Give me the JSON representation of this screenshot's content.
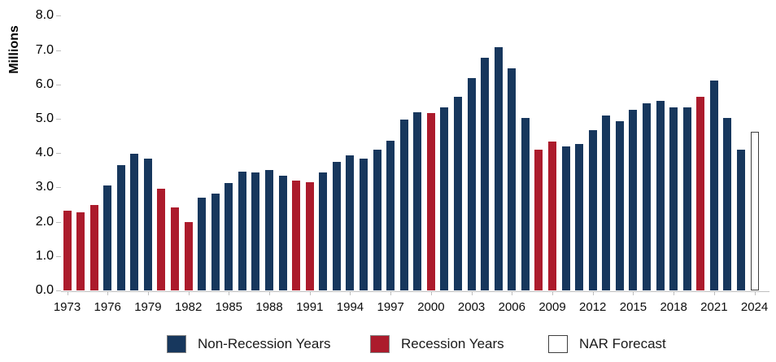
{
  "chart_data": {
    "type": "bar",
    "ylabel": "Millions",
    "ylim": [
      0.0,
      8.0
    ],
    "ytick_labels": [
      "0.0",
      "1.0",
      "2.0",
      "3.0",
      "4.0",
      "5.0",
      "6.0",
      "7.0",
      "8.0"
    ],
    "xtick_labels": [
      "1973",
      "1976",
      "1979",
      "1982",
      "1985",
      "1988",
      "1991",
      "1994",
      "1997",
      "2000",
      "2003",
      "2006",
      "2009",
      "2012",
      "2015",
      "2018",
      "2021",
      "2024"
    ],
    "grid": false,
    "legend_position": "bottom",
    "bars": [
      {
        "year": 1973,
        "value": 2.33,
        "kind": "recession"
      },
      {
        "year": 1974,
        "value": 2.28,
        "kind": "recession"
      },
      {
        "year": 1975,
        "value": 2.48,
        "kind": "recession"
      },
      {
        "year": 1976,
        "value": 3.06,
        "kind": "normal"
      },
      {
        "year": 1977,
        "value": 3.65,
        "kind": "normal"
      },
      {
        "year": 1978,
        "value": 3.99,
        "kind": "normal"
      },
      {
        "year": 1979,
        "value": 3.83,
        "kind": "normal"
      },
      {
        "year": 1980,
        "value": 2.97,
        "kind": "recession"
      },
      {
        "year": 1981,
        "value": 2.42,
        "kind": "recession"
      },
      {
        "year": 1982,
        "value": 1.99,
        "kind": "recession"
      },
      {
        "year": 1983,
        "value": 2.7,
        "kind": "normal"
      },
      {
        "year": 1984,
        "value": 2.83,
        "kind": "normal"
      },
      {
        "year": 1985,
        "value": 3.13,
        "kind": "normal"
      },
      {
        "year": 1986,
        "value": 3.47,
        "kind": "normal"
      },
      {
        "year": 1987,
        "value": 3.44,
        "kind": "normal"
      },
      {
        "year": 1988,
        "value": 3.51,
        "kind": "normal"
      },
      {
        "year": 1989,
        "value": 3.33,
        "kind": "normal"
      },
      {
        "year": 1990,
        "value": 3.19,
        "kind": "recession"
      },
      {
        "year": 1991,
        "value": 3.15,
        "kind": "recession"
      },
      {
        "year": 1992,
        "value": 3.43,
        "kind": "normal"
      },
      {
        "year": 1993,
        "value": 3.74,
        "kind": "normal"
      },
      {
        "year": 1994,
        "value": 3.93,
        "kind": "normal"
      },
      {
        "year": 1995,
        "value": 3.84,
        "kind": "normal"
      },
      {
        "year": 1996,
        "value": 4.09,
        "kind": "normal"
      },
      {
        "year": 1997,
        "value": 4.37,
        "kind": "normal"
      },
      {
        "year": 1998,
        "value": 4.97,
        "kind": "normal"
      },
      {
        "year": 1999,
        "value": 5.19,
        "kind": "normal"
      },
      {
        "year": 2000,
        "value": 5.17,
        "kind": "recession"
      },
      {
        "year": 2001,
        "value": 5.34,
        "kind": "normal"
      },
      {
        "year": 2002,
        "value": 5.63,
        "kind": "normal"
      },
      {
        "year": 2003,
        "value": 6.18,
        "kind": "normal"
      },
      {
        "year": 2004,
        "value": 6.78,
        "kind": "normal"
      },
      {
        "year": 2005,
        "value": 7.08,
        "kind": "normal"
      },
      {
        "year": 2006,
        "value": 6.48,
        "kind": "normal"
      },
      {
        "year": 2007,
        "value": 5.03,
        "kind": "normal"
      },
      {
        "year": 2008,
        "value": 4.11,
        "kind": "recession"
      },
      {
        "year": 2009,
        "value": 4.34,
        "kind": "recession"
      },
      {
        "year": 2010,
        "value": 4.19,
        "kind": "normal"
      },
      {
        "year": 2011,
        "value": 4.26,
        "kind": "normal"
      },
      {
        "year": 2012,
        "value": 4.66,
        "kind": "normal"
      },
      {
        "year": 2013,
        "value": 5.09,
        "kind": "normal"
      },
      {
        "year": 2014,
        "value": 4.94,
        "kind": "normal"
      },
      {
        "year": 2015,
        "value": 5.25,
        "kind": "normal"
      },
      {
        "year": 2016,
        "value": 5.45,
        "kind": "normal"
      },
      {
        "year": 2017,
        "value": 5.51,
        "kind": "normal"
      },
      {
        "year": 2018,
        "value": 5.34,
        "kind": "normal"
      },
      {
        "year": 2019,
        "value": 5.34,
        "kind": "normal"
      },
      {
        "year": 2020,
        "value": 5.64,
        "kind": "recession"
      },
      {
        "year": 2021,
        "value": 6.12,
        "kind": "normal"
      },
      {
        "year": 2022,
        "value": 5.03,
        "kind": "normal"
      },
      {
        "year": 2023,
        "value": 4.09,
        "kind": "normal"
      },
      {
        "year": 2024,
        "value": 4.62,
        "kind": "forecast"
      }
    ],
    "legend": [
      {
        "id": "non-recession",
        "label": "Non-Recession Years",
        "kind": "normal"
      },
      {
        "id": "recession",
        "label": "Recession Years",
        "kind": "recession"
      },
      {
        "id": "nar-forecast",
        "label": "NAR Forecast",
        "kind": "forecast"
      }
    ],
    "colors": {
      "normal": "#17375D",
      "recession": "#AC1B2C",
      "forecast_fill": "#FFFFFF",
      "forecast_border": "#3F3F3F",
      "axis": "#BFBFBF",
      "text": "#000000"
    }
  }
}
